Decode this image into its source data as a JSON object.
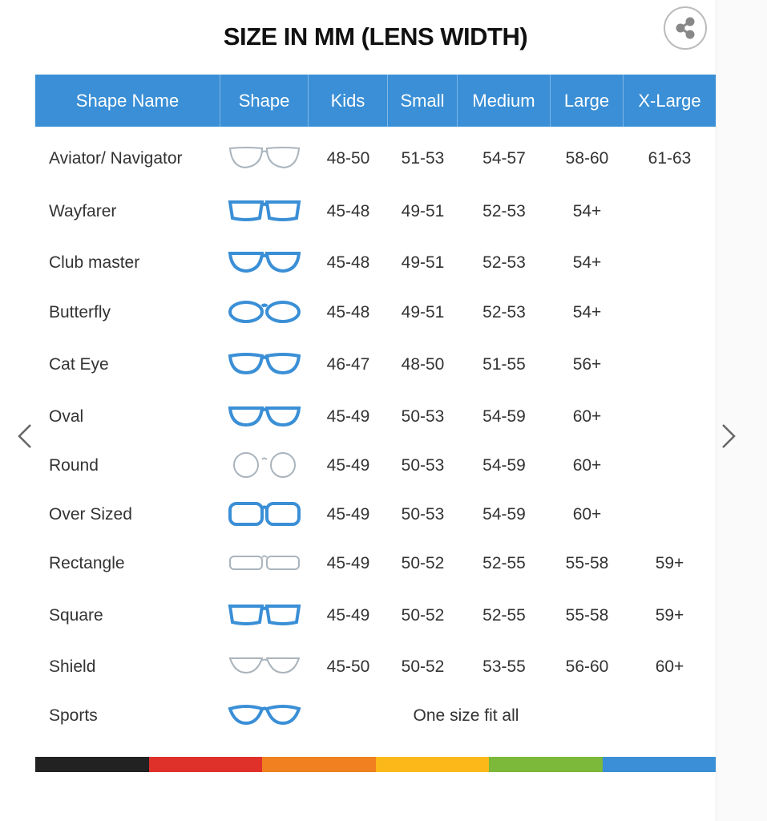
{
  "title": "SIZE IN MM (LENS WIDTH)",
  "share_icon": "share-icon",
  "columns": [
    "Shape Name",
    "Shape",
    "Kids",
    "Small",
    "Medium",
    "Large",
    "X-Large"
  ],
  "rows": [
    {
      "name": "Aviator/ Navigator",
      "shape": "aviator",
      "kids": "48-50",
      "small": "51-53",
      "medium": "54-57",
      "large": "58-60",
      "xlarge": "61-63"
    },
    {
      "name": "Wayfarer",
      "shape": "wayfarer",
      "kids": "45-48",
      "small": "49-51",
      "medium": "52-53",
      "large": "54+",
      "xlarge": ""
    },
    {
      "name": "Club master",
      "shape": "clubmaster",
      "kids": "45-48",
      "small": "49-51",
      "medium": "52-53",
      "large": "54+",
      "xlarge": ""
    },
    {
      "name": "Butterfly",
      "shape": "butterfly",
      "kids": "45-48",
      "small": "49-51",
      "medium": "52-53",
      "large": "54+",
      "xlarge": ""
    },
    {
      "name": "Cat Eye",
      "shape": "cateye",
      "kids": "46-47",
      "small": "48-50",
      "medium": "51-55",
      "large": "56+",
      "xlarge": ""
    },
    {
      "name": "Oval",
      "shape": "oval",
      "kids": "45-49",
      "small": "50-53",
      "medium": "54-59",
      "large": "60+",
      "xlarge": ""
    },
    {
      "name": "Round",
      "shape": "round",
      "kids": "45-49",
      "small": "50-53",
      "medium": "54-59",
      "large": "60+",
      "xlarge": ""
    },
    {
      "name": "Over Sized",
      "shape": "oversized",
      "kids": "45-49",
      "small": "50-53",
      "medium": "54-59",
      "large": "60+",
      "xlarge": ""
    },
    {
      "name": "Rectangle",
      "shape": "rectangle",
      "kids": "45-49",
      "small": "50-52",
      "medium": "52-55",
      "large": "55-58",
      "xlarge": "59+"
    },
    {
      "name": "Square",
      "shape": "square",
      "kids": "45-49",
      "small": "50-52",
      "medium": "52-55",
      "large": "55-58",
      "xlarge": "59+"
    },
    {
      "name": "Shield",
      "shape": "shield",
      "kids": "45-50",
      "small": "50-52",
      "medium": "53-55",
      "large": "56-60",
      "xlarge": "60+"
    },
    {
      "name": "Sports",
      "shape": "sports",
      "span": "One size fit all"
    }
  ],
  "colors": {
    "header": "#3a8fd6",
    "frame": "#3a8fd6",
    "thin_frame": "#aab4bc",
    "stripe": [
      "#222222",
      "#e0302a",
      "#f08020",
      "#fbb818",
      "#7cb83a",
      "#3a8fd6"
    ]
  }
}
